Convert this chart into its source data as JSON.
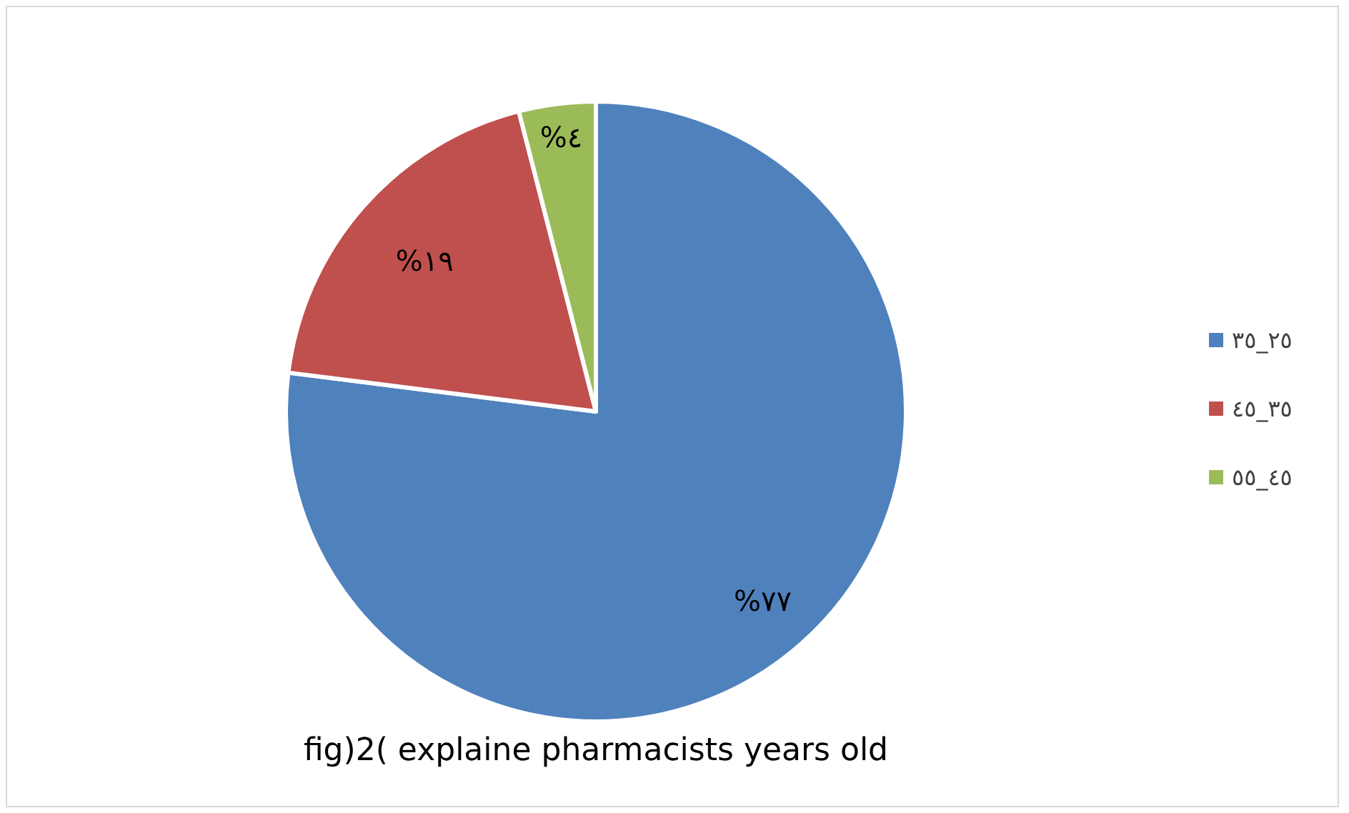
{
  "chart_data": {
    "type": "pie",
    "title": "fig)2( explaine pharmacists years old",
    "categories": [
      "٢٥_٣٥",
      "٣٥_٤٥",
      "٤٥_٥٥"
    ],
    "values": [
      77,
      19,
      4
    ],
    "colors": [
      "#4f81bd",
      "#c0504d",
      "#9bbb59"
    ],
    "value_labels": [
      "%٧٧",
      "%١٩",
      "%٤"
    ],
    "legend": "right"
  }
}
